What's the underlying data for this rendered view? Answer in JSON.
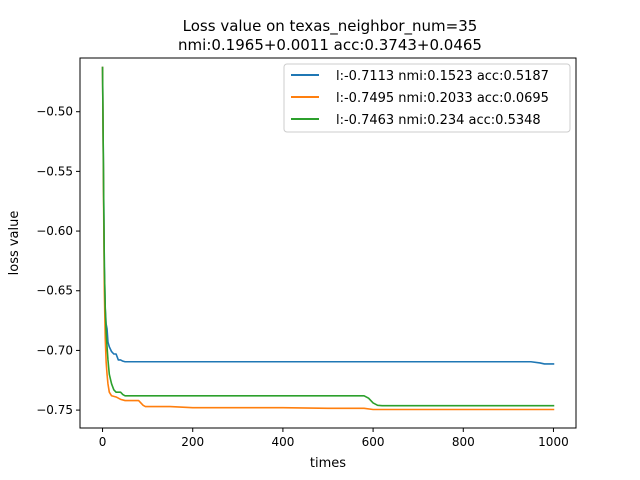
{
  "chart_data": {
    "type": "line",
    "title_line1": "Loss value on texas_neighbor_num=35",
    "title_line2": "nmi:0.1965+0.0011 acc:0.3743+0.0465",
    "xlabel": "times",
    "ylabel": "loss value",
    "xlim": [
      -50,
      1050
    ],
    "ylim": [
      -0.765,
      -0.455
    ],
    "xticks": [
      0,
      200,
      400,
      600,
      800,
      1000
    ],
    "xtick_labels": [
      "0",
      "200",
      "400",
      "600",
      "800",
      "1000"
    ],
    "yticks": [
      -0.5,
      -0.55,
      -0.6,
      -0.65,
      -0.7,
      -0.75
    ],
    "ytick_labels": [
      "−0.50",
      "−0.55",
      "−0.60",
      "−0.65",
      "−0.70",
      "−0.75"
    ],
    "legend_position": "top-right",
    "series": [
      {
        "name": "l:-0.7113 nmi:0.1523 acc:0.5187",
        "color": "#1f77b4",
        "x": [
          0,
          2,
          4,
          6,
          8,
          10,
          12,
          15,
          20,
          25,
          30,
          35,
          40,
          45,
          50,
          100,
          200,
          400,
          600,
          800,
          950,
          970,
          980,
          1000
        ],
        "y": [
          -0.463,
          -0.55,
          -0.63,
          -0.665,
          -0.678,
          -0.682,
          -0.693,
          -0.697,
          -0.701,
          -0.703,
          -0.703,
          -0.708,
          -0.708,
          -0.709,
          -0.7095,
          -0.7095,
          -0.7095,
          -0.7095,
          -0.7095,
          -0.7095,
          -0.7095,
          -0.7105,
          -0.7113,
          -0.7113
        ]
      },
      {
        "name": "l:-0.7495 nmi:0.2033 acc:0.0695",
        "color": "#ff7f0e",
        "x": [
          0,
          2,
          4,
          6,
          8,
          10,
          12,
          15,
          20,
          30,
          40,
          50,
          60,
          80,
          90,
          95,
          100,
          150,
          200,
          300,
          400,
          500,
          580,
          600,
          620,
          700,
          800,
          900,
          1000
        ],
        "y": [
          -0.463,
          -0.56,
          -0.65,
          -0.69,
          -0.71,
          -0.72,
          -0.728,
          -0.735,
          -0.738,
          -0.739,
          -0.741,
          -0.742,
          -0.742,
          -0.742,
          -0.746,
          -0.747,
          -0.747,
          -0.747,
          -0.748,
          -0.748,
          -0.748,
          -0.7485,
          -0.7485,
          -0.7495,
          -0.7495,
          -0.7495,
          -0.7495,
          -0.7495,
          -0.7495
        ]
      },
      {
        "name": "l:-0.7463 nmi:0.234 acc:0.5348",
        "color": "#2ca02c",
        "x": [
          0,
          2,
          4,
          6,
          8,
          10,
          12,
          15,
          20,
          25,
          30,
          40,
          45,
          50,
          100,
          200,
          400,
          580,
          590,
          600,
          610,
          620,
          700,
          800,
          900,
          1000
        ],
        "y": [
          -0.463,
          -0.55,
          -0.63,
          -0.665,
          -0.685,
          -0.697,
          -0.708,
          -0.72,
          -0.728,
          -0.733,
          -0.735,
          -0.735,
          -0.737,
          -0.738,
          -0.738,
          -0.738,
          -0.738,
          -0.738,
          -0.74,
          -0.744,
          -0.746,
          -0.7463,
          -0.7463,
          -0.7463,
          -0.7463,
          -0.7463
        ]
      }
    ]
  }
}
